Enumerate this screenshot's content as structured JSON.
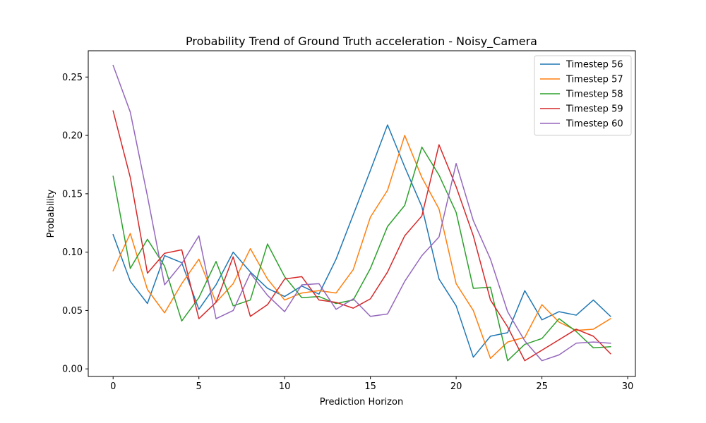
{
  "chart_data": {
    "type": "line",
    "title": "Probability Trend of Ground Truth acceleration - Noisy_Camera",
    "xlabel": "Prediction Horizon",
    "ylabel": "Probability",
    "xlim": [
      -1.45,
      30.45
    ],
    "ylim": [
      -0.0065,
      0.2725
    ],
    "xticks": [
      0,
      5,
      10,
      15,
      20,
      25,
      30
    ],
    "yticks": [
      0.0,
      0.05,
      0.1,
      0.15,
      0.2,
      0.25
    ],
    "ytick_labels": [
      "0.00",
      "0.05",
      "0.10",
      "0.15",
      "0.20",
      "0.25"
    ],
    "grid": false,
    "legend_position": "top-right",
    "x": [
      0,
      1,
      2,
      3,
      4,
      5,
      6,
      7,
      8,
      9,
      10,
      11,
      12,
      13,
      14,
      15,
      16,
      17,
      18,
      19,
      20,
      21,
      22,
      23,
      24,
      25,
      26,
      27,
      28,
      29
    ],
    "series": [
      {
        "name": "Timestep 56",
        "color": "#1f77b4",
        "values": [
          0.115,
          0.075,
          0.056,
          0.097,
          0.091,
          0.051,
          0.072,
          0.1,
          0.083,
          0.069,
          0.062,
          0.071,
          0.064,
          0.094,
          0.132,
          0.17,
          0.209,
          0.173,
          0.139,
          0.077,
          0.054,
          0.01,
          0.028,
          0.031,
          0.067,
          0.042,
          0.049,
          0.046,
          0.059,
          0.045
        ]
      },
      {
        "name": "Timestep 57",
        "color": "#ff7f0e",
        "values": [
          0.084,
          0.116,
          0.068,
          0.048,
          0.073,
          0.094,
          0.057,
          0.073,
          0.103,
          0.077,
          0.059,
          0.065,
          0.067,
          0.065,
          0.085,
          0.13,
          0.153,
          0.2,
          0.164,
          0.137,
          0.073,
          0.05,
          0.009,
          0.023,
          0.027,
          0.055,
          0.04,
          0.033,
          0.034,
          0.043
        ]
      },
      {
        "name": "Timestep 58",
        "color": "#2ca02c",
        "values": [
          0.165,
          0.086,
          0.111,
          0.088,
          0.041,
          0.061,
          0.092,
          0.054,
          0.059,
          0.107,
          0.079,
          0.061,
          0.062,
          0.056,
          0.059,
          0.086,
          0.122,
          0.14,
          0.19,
          0.166,
          0.134,
          0.069,
          0.07,
          0.007,
          0.021,
          0.026,
          0.043,
          0.032,
          0.018,
          0.019
        ]
      },
      {
        "name": "Timestep 59",
        "color": "#d62728",
        "values": [
          0.221,
          0.164,
          0.082,
          0.099,
          0.102,
          0.043,
          0.057,
          0.096,
          0.045,
          0.055,
          0.077,
          0.079,
          0.059,
          0.057,
          0.052,
          0.06,
          0.083,
          0.114,
          0.131,
          0.192,
          0.156,
          0.114,
          0.059,
          0.036,
          0.007,
          0.016,
          0.025,
          0.034,
          0.028,
          0.013
        ]
      },
      {
        "name": "Timestep 60",
        "color": "#9467bd",
        "values": [
          0.26,
          0.22,
          0.148,
          0.072,
          0.09,
          0.114,
          0.043,
          0.05,
          0.082,
          0.063,
          0.049,
          0.072,
          0.073,
          0.051,
          0.06,
          0.045,
          0.047,
          0.075,
          0.097,
          0.113,
          0.176,
          0.127,
          0.094,
          0.049,
          0.024,
          0.007,
          0.012,
          0.022,
          0.023,
          0.022
        ]
      }
    ]
  }
}
